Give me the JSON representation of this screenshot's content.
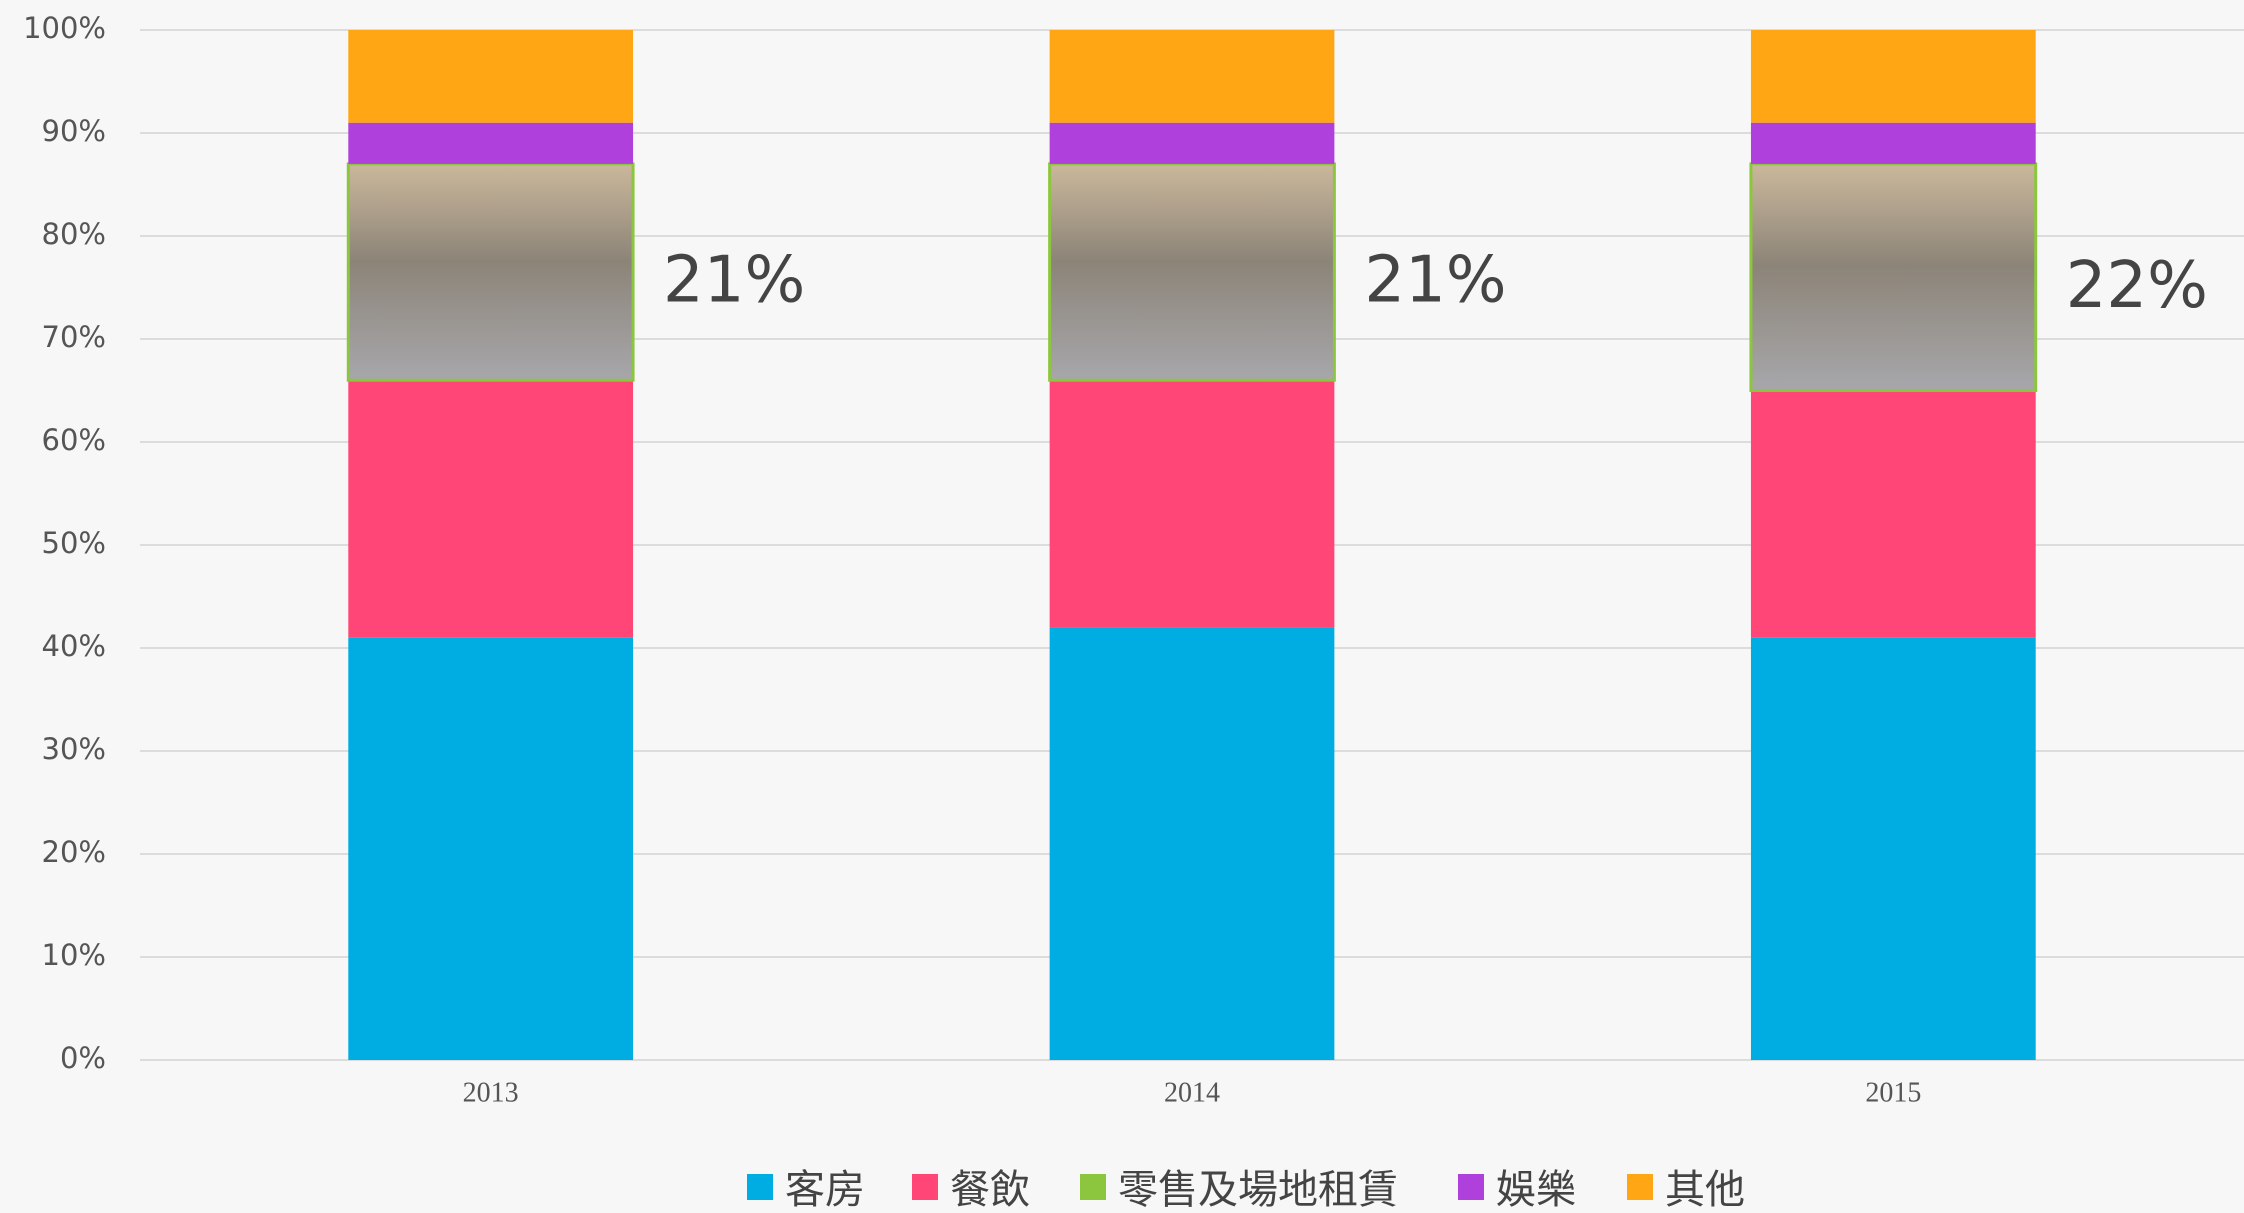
{
  "chart_data": {
    "type": "stacked_bar",
    "categories": [
      "2013",
      "2014",
      "2015"
    ],
    "series": [
      {
        "name": "客房",
        "color": "#00ade2",
        "values": [
          41,
          42,
          41
        ]
      },
      {
        "name": "餐飲",
        "color": "#ff4677",
        "values": [
          25,
          24,
          24
        ]
      },
      {
        "name": "零售及場地租賃",
        "color": "#8cc63e",
        "values": [
          21,
          21,
          22
        ],
        "value_labels": [
          "21%",
          "21%",
          "22%"
        ]
      },
      {
        "name": "娛樂",
        "color": "#b040dc",
        "values": [
          4,
          4,
          4
        ]
      },
      {
        "name": "其他",
        "color": "#ffa614",
        "values": [
          9,
          9,
          9
        ]
      }
    ],
    "ylim": [
      0,
      100
    ],
    "yticks": [
      {
        "value": 0,
        "label": "0%"
      },
      {
        "value": 10,
        "label": "10%"
      },
      {
        "value": 20,
        "label": "20%"
      },
      {
        "value": 30,
        "label": "30%"
      },
      {
        "value": 40,
        "label": "40%"
      },
      {
        "value": 50,
        "label": "50%"
      },
      {
        "value": 60,
        "label": "60%"
      },
      {
        "value": 70,
        "label": "70%"
      },
      {
        "value": 80,
        "label": "80%"
      },
      {
        "value": 90,
        "label": "90%"
      },
      {
        "value": 100,
        "label": "100%"
      }
    ],
    "grid": true,
    "legend": "bottom"
  }
}
